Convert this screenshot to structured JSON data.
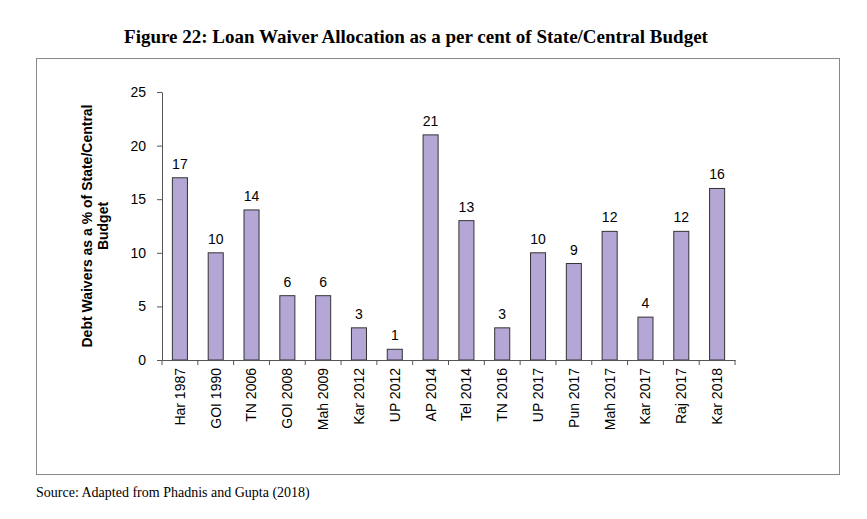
{
  "chart_data": {
    "type": "bar",
    "title": "Figure 22: Loan Waiver Allocation as a per cent of State/Central Budget",
    "y_label": "Debt Waivers as a % of State/Central Budget",
    "source": "Source: Adapted from Phadnis and Gupta (2018)",
    "categories": [
      "Har 1987",
      "GOI 1990",
      "TN 2006",
      "GOI 2008",
      "Mah 2009",
      "Kar 2012",
      "UP 2012",
      "AP 2014",
      "Tel 2014",
      "TN 2016",
      "UP 2017",
      "Pun 2017",
      "Mah 2017",
      "Kar 2017",
      "Raj 2017",
      "Kar 2018"
    ],
    "values": [
      17,
      10,
      14,
      6,
      6,
      3,
      1,
      21,
      13,
      3,
      10,
      9,
      12,
      4,
      12,
      16
    ],
    "color": "#b4a7d6",
    "ylim": [
      0,
      25
    ],
    "yticks": [
      0,
      5,
      10,
      15,
      20,
      25
    ],
    "grid": false,
    "data_labels": true
  }
}
